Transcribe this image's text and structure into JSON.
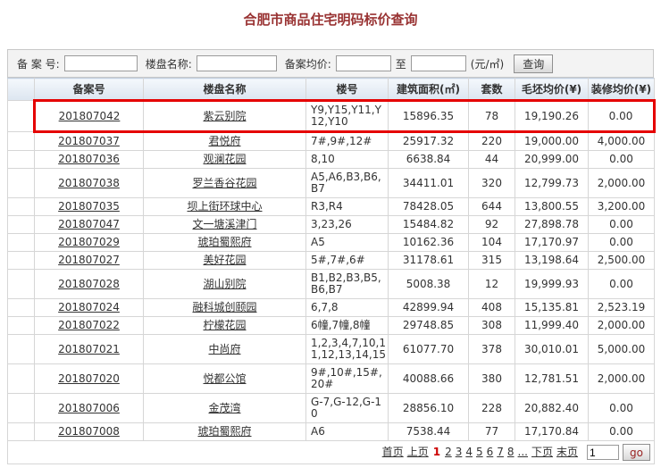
{
  "page": {
    "title": "合肥市商品住宅明码标价查询"
  },
  "search": {
    "record_no_label": "备 案 号:",
    "record_no_value": "",
    "name_label": "楼盘名称:",
    "name_value": "",
    "avg_price_label": "备案均价:",
    "price_min_value": "",
    "to_label": "至",
    "price_max_value": "",
    "unit_label": "(元/㎡)",
    "query_button": "查询"
  },
  "table": {
    "headers": [
      "备案号",
      "楼盘名称",
      "楼号",
      "建筑面积(㎡)",
      "套数",
      "毛坯均价(¥)",
      "装修均价(¥)"
    ],
    "rows": [
      {
        "record_no": "201807042",
        "name": "紫云别院",
        "buildings": "Y9,Y15,Y11,Y12,Y10",
        "area": "15896.35",
        "units": "78",
        "rough_price": "19,190.26",
        "decor_price": "0.00",
        "highlighted": true
      },
      {
        "record_no": "201807037",
        "name": "君悦府",
        "buildings": "7#,9#,12#",
        "area": "25917.32",
        "units": "220",
        "rough_price": "19,000.00",
        "decor_price": "4,000.00",
        "highlighted": false
      },
      {
        "record_no": "201807036",
        "name": "观澜花园",
        "buildings": "8,10",
        "area": "6638.84",
        "units": "44",
        "rough_price": "20,999.00",
        "decor_price": "0.00",
        "highlighted": false
      },
      {
        "record_no": "201807038",
        "name": "罗兰香谷花园",
        "buildings": "A5,A6,B3,B6,B7",
        "area": "34411.01",
        "units": "320",
        "rough_price": "12,799.73",
        "decor_price": "2,000.00",
        "highlighted": false
      },
      {
        "record_no": "201807035",
        "name": "坝上街环球中心",
        "buildings": "R3,R4",
        "area": "78428.05",
        "units": "644",
        "rough_price": "13,800.55",
        "decor_price": "3,200.00",
        "highlighted": false
      },
      {
        "record_no": "201807047",
        "name": "文一塘溪津门",
        "buildings": "3,23,26",
        "area": "15484.82",
        "units": "92",
        "rough_price": "27,898.78",
        "decor_price": "0.00",
        "highlighted": false
      },
      {
        "record_no": "201807029",
        "name": "琥珀蜀熙府",
        "buildings": "A5",
        "area": "10162.36",
        "units": "104",
        "rough_price": "17,170.97",
        "decor_price": "0.00",
        "highlighted": false
      },
      {
        "record_no": "201807027",
        "name": "美好花园",
        "buildings": "5#,7#,6#",
        "area": "31178.61",
        "units": "315",
        "rough_price": "13,198.64",
        "decor_price": "2,500.00",
        "highlighted": false
      },
      {
        "record_no": "201807028",
        "name": "湖山别院",
        "buildings": "B1,B2,B3,B5,B6,B7",
        "area": "5008.38",
        "units": "12",
        "rough_price": "19,999.93",
        "decor_price": "0.00",
        "highlighted": false
      },
      {
        "record_no": "201807024",
        "name": "融科城创颐园",
        "buildings": "6,7,8",
        "area": "42899.94",
        "units": "408",
        "rough_price": "15,135.81",
        "decor_price": "2,523.19",
        "highlighted": false
      },
      {
        "record_no": "201807022",
        "name": "柠檬花园",
        "buildings": "6幢,7幢,8幢",
        "area": "29748.85",
        "units": "308",
        "rough_price": "11,999.40",
        "decor_price": "2,000.00",
        "highlighted": false
      },
      {
        "record_no": "201807021",
        "name": "中尚府",
        "buildings": "1,2,3,4,7,10,11,12,13,14,15",
        "area": "61077.70",
        "units": "378",
        "rough_price": "30,010.01",
        "decor_price": "5,000.00",
        "highlighted": false
      },
      {
        "record_no": "201807020",
        "name": "悦都公馆",
        "buildings": "9#,10#,15#,20#",
        "area": "40088.66",
        "units": "380",
        "rough_price": "12,781.51",
        "decor_price": "2,000.00",
        "highlighted": false
      },
      {
        "record_no": "201807006",
        "name": "金茂湾",
        "buildings": "G-7,G-12,G-10",
        "area": "28856.10",
        "units": "228",
        "rough_price": "20,882.40",
        "decor_price": "0.00",
        "highlighted": false
      },
      {
        "record_no": "201807008",
        "name": "琥珀蜀熙府",
        "buildings": "A6",
        "area": "7538.44",
        "units": "77",
        "rough_price": "17,170.84",
        "decor_price": "0.00",
        "highlighted": false
      }
    ]
  },
  "pagination": {
    "first_label": "首页",
    "prev_label": "上页",
    "current_page": "1",
    "page_links": [
      "2",
      "3",
      "4",
      "5",
      "6",
      "7",
      "8"
    ],
    "ellipsis_label": "...",
    "next_label": "下页",
    "last_label": "末页",
    "goto_value": "1",
    "go_label": "go"
  }
}
